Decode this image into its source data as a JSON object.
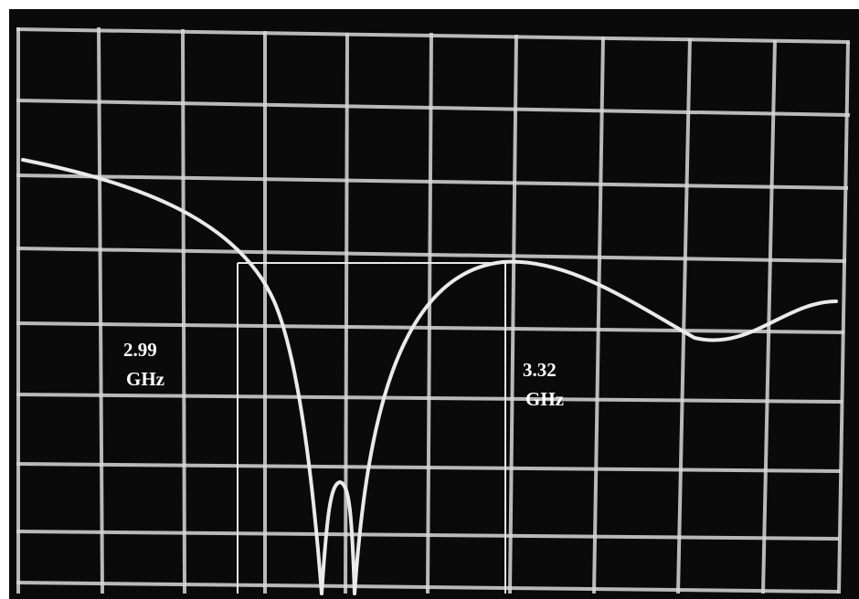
{
  "markers": [
    {
      "lines": [
        "2.99",
        "GHz"
      ]
    },
    {
      "lines": [
        "3.32",
        "GHz"
      ]
    }
  ]
}
